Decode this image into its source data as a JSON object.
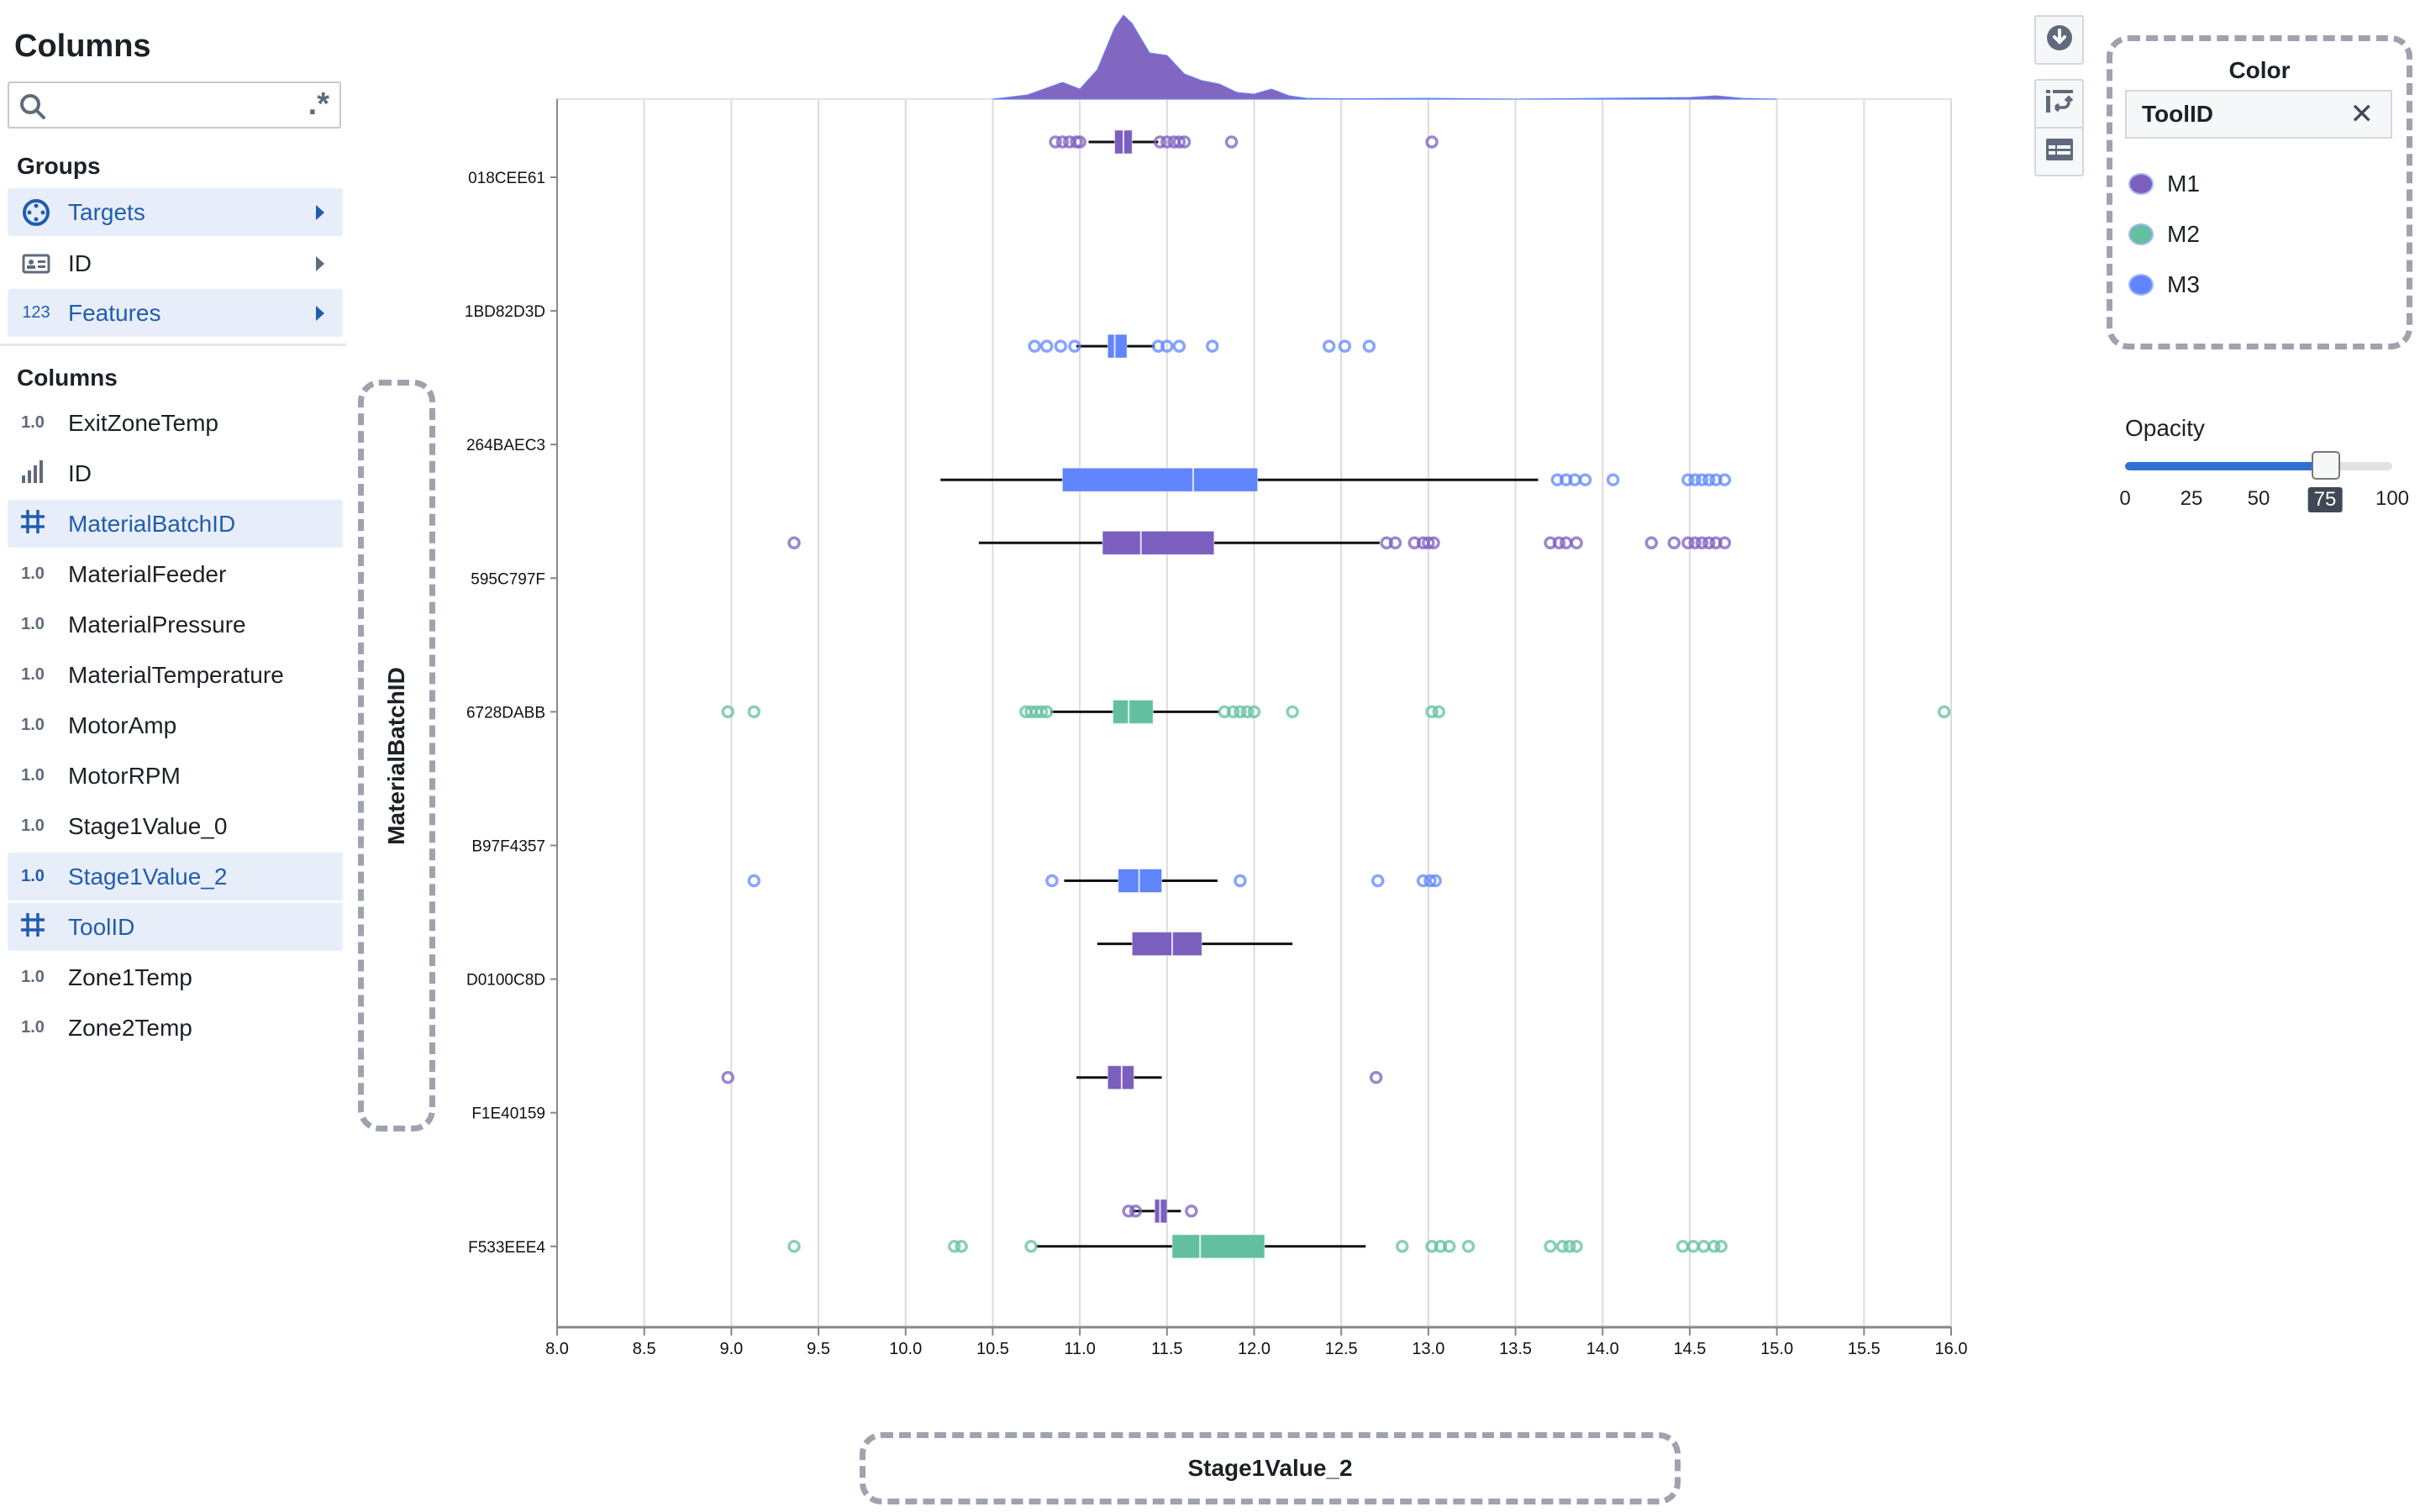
{
  "sidebar": {
    "title": "Columns",
    "search": {
      "placeholder": "",
      "value": "",
      "regex_label": ".*"
    },
    "groups_heading": "Groups",
    "groups": [
      {
        "label": "Targets",
        "icon": "target-icon",
        "selected": true
      },
      {
        "label": "ID",
        "icon": "id-card-icon",
        "selected": false
      },
      {
        "label": "Features",
        "icon": "123",
        "selected": true
      }
    ],
    "columns_heading": "Columns",
    "columns": [
      {
        "label": "ExitZoneTemp",
        "type": "1.0",
        "selected": false
      },
      {
        "label": "ID",
        "type": "bars",
        "selected": false
      },
      {
        "label": "MaterialBatchID",
        "type": "grid",
        "selected": true
      },
      {
        "label": "MaterialFeeder",
        "type": "1.0",
        "selected": false
      },
      {
        "label": "MaterialPressure",
        "type": "1.0",
        "selected": false
      },
      {
        "label": "MaterialTemperature",
        "type": "1.0",
        "selected": false
      },
      {
        "label": "MotorAmp",
        "type": "1.0",
        "selected": false
      },
      {
        "label": "MotorRPM",
        "type": "1.0",
        "selected": false
      },
      {
        "label": "Stage1Value_0",
        "type": "1.0",
        "selected": false
      },
      {
        "label": "Stage1Value_2",
        "type": "1.0",
        "selected": true
      },
      {
        "label": "ToolID",
        "type": "grid",
        "selected": true
      },
      {
        "label": "Zone1Temp",
        "type": "1.0",
        "selected": false
      },
      {
        "label": "Zone2Temp",
        "type": "1.0",
        "selected": false
      }
    ]
  },
  "toolbar": {
    "download_icon": "download-icon",
    "swap_icon": "swap-axes-icon",
    "table_icon": "table-icon"
  },
  "color_panel": {
    "title": "Color",
    "field": "ToolID",
    "legend": [
      {
        "label": "M1",
        "color": "#7a5fbf"
      },
      {
        "label": "M2",
        "color": "#62c0a0"
      },
      {
        "label": "M3",
        "color": "#6085fc"
      }
    ]
  },
  "opacity": {
    "label": "Opacity",
    "value": 75,
    "ticks": [
      "0",
      "25",
      "50",
      "75",
      "100"
    ]
  },
  "chart_data": {
    "type": "boxplot",
    "xlabel": "Stage1Value_2",
    "ylabel": "MaterialBatchID",
    "xlim": [
      8.0,
      16.0
    ],
    "xticks": [
      "8.0",
      "8.5",
      "9.0",
      "9.5",
      "10.0",
      "10.5",
      "11.0",
      "11.5",
      "12.0",
      "12.5",
      "13.0",
      "13.5",
      "14.0",
      "14.5",
      "15.0",
      "15.5",
      "16.0"
    ],
    "grid": true,
    "categories": [
      "018CEE61",
      "1BD82D3D",
      "264BAEC3",
      "595C797F",
      "6728DABB",
      "B97F4357",
      "D0100C8D",
      "F1E40159",
      "F533EEE4"
    ],
    "color_field": "ToolID",
    "boxes": [
      {
        "category": "018CEE61",
        "group": "M1",
        "whisker_low": 11.05,
        "q1": 11.2,
        "median": 11.25,
        "q3": 11.3,
        "whisker_high": 11.45,
        "outliers": [
          10.86,
          10.9,
          10.94,
          10.98,
          11.0,
          11.46,
          11.5,
          11.54,
          11.57,
          11.6,
          11.87,
          13.02
        ]
      },
      {
        "category": "1BD82D3D",
        "group": "M3",
        "whisker_low": 10.98,
        "q1": 11.16,
        "median": 11.2,
        "q3": 11.27,
        "whisker_high": 11.43,
        "outliers": [
          10.74,
          10.81,
          10.89,
          10.97,
          11.45,
          11.5,
          11.57,
          11.76,
          12.43,
          12.52,
          12.66
        ]
      },
      {
        "category": "264BAEC3",
        "group": "M3",
        "whisker_low": 10.2,
        "q1": 10.9,
        "median": 11.65,
        "q3": 12.02,
        "whisker_high": 13.63,
        "outliers": [
          13.74,
          13.79,
          13.84,
          13.9,
          14.06,
          14.49,
          14.53,
          14.57,
          14.61,
          14.65,
          14.7
        ]
      },
      {
        "category": "595C797F",
        "group": "M1",
        "whisker_low": 10.42,
        "q1": 11.13,
        "median": 11.35,
        "q3": 11.77,
        "whisker_high": 12.72,
        "outliers": [
          9.36,
          12.76,
          12.81,
          12.92,
          12.97,
          13.0,
          13.03,
          13.7,
          13.75,
          13.79,
          13.85,
          14.28,
          14.41,
          14.49,
          14.53,
          14.57,
          14.61,
          14.65,
          14.7
        ]
      },
      {
        "category": "6728DABB",
        "group": "M2",
        "whisker_low": 10.83,
        "q1": 11.19,
        "median": 11.28,
        "q3": 11.42,
        "whisker_high": 11.8,
        "outliers": [
          8.98,
          9.13,
          10.69,
          10.72,
          10.75,
          10.78,
          10.81,
          11.83,
          11.88,
          11.92,
          11.96,
          12.0,
          12.22,
          13.02,
          13.06,
          15.96
        ]
      },
      {
        "category": "B97F4357",
        "group": "M3",
        "whisker_low": 10.91,
        "q1": 11.22,
        "median": 11.34,
        "q3": 11.47,
        "whisker_high": 11.79,
        "outliers": [
          9.13,
          10.84,
          11.92,
          12.71,
          12.97,
          13.01,
          13.04
        ]
      },
      {
        "category": "D0100C8D",
        "group": "M1",
        "whisker_low": 11.1,
        "q1": 11.3,
        "median": 11.53,
        "q3": 11.7,
        "whisker_high": 12.22,
        "outliers": []
      },
      {
        "category": "F1E40159",
        "group": "M1",
        "whisker_low": 10.98,
        "q1": 11.16,
        "median": 11.24,
        "q3": 11.31,
        "whisker_high": 11.47,
        "outliers": [
          8.98,
          12.7
        ]
      },
      {
        "category": "F533EEE4",
        "group": "M1",
        "whisker_low": 11.3,
        "q1": 11.43,
        "median": 11.46,
        "q3": 11.5,
        "whisker_high": 11.58,
        "outliers": [
          11.28,
          11.32,
          11.64
        ]
      },
      {
        "category": "F533EEE4",
        "group": "M2",
        "whisker_low": 10.75,
        "q1": 11.53,
        "median": 11.69,
        "q3": 12.06,
        "whisker_high": 12.64,
        "outliers": [
          9.36,
          10.28,
          10.32,
          10.72,
          12.85,
          13.02,
          13.07,
          13.12,
          13.23,
          13.7,
          13.77,
          13.81,
          13.85,
          14.46,
          14.52,
          14.58,
          14.64,
          14.68
        ]
      }
    ],
    "density": {
      "x": [
        10.5,
        10.7,
        10.9,
        11.0,
        11.1,
        11.2,
        11.25,
        11.3,
        11.4,
        11.5,
        11.6,
        11.7,
        11.8,
        11.9,
        12.0,
        12.1,
        12.2,
        12.3,
        12.5,
        13.0,
        13.5,
        14.0,
        14.5,
        14.65,
        14.8,
        15.0
      ],
      "y": [
        0,
        0.05,
        0.2,
        0.12,
        0.35,
        0.85,
        1.0,
        0.9,
        0.55,
        0.52,
        0.3,
        0.22,
        0.18,
        0.08,
        0.06,
        0.12,
        0.04,
        0.01,
        0.005,
        0.01,
        0.0,
        0.01,
        0.02,
        0.04,
        0.01,
        0
      ]
    }
  }
}
